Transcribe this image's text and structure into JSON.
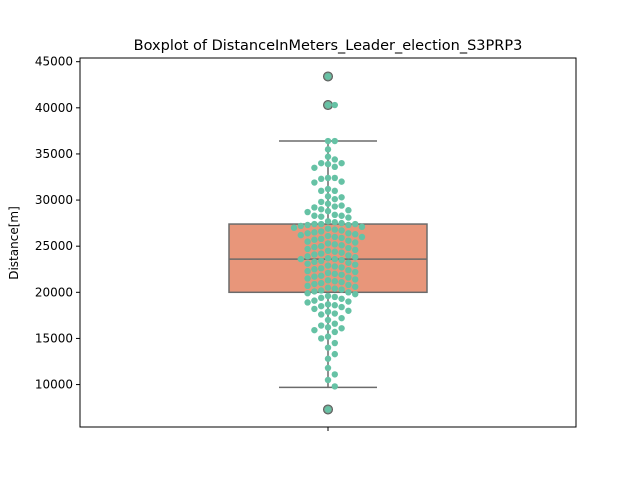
{
  "chart_data": {
    "type": "boxplot",
    "title": "Boxplot of DistanceInMeters_Leader_election_S3PRP3",
    "xlabel": "",
    "ylabel": "Distance[m]",
    "ylim": [
      5400,
      45400
    ],
    "yticks": [
      10000,
      15000,
      20000,
      25000,
      30000,
      35000,
      40000,
      45000
    ],
    "grid": false,
    "box": {
      "color": "#e8967a",
      "edge_color": "#6b6b6b",
      "whisker_low": 9700,
      "q1": 20000,
      "median": 23600,
      "q3": 27400,
      "whisker_high": 36400,
      "outliers": [
        7300,
        40300,
        43400
      ]
    },
    "swarm": {
      "color": "#66c2a5",
      "values": [
        43400,
        40300,
        40300,
        36400,
        36400,
        35500,
        34700,
        34400,
        34000,
        34000,
        33900,
        33600,
        33500,
        32400,
        32400,
        32300,
        32000,
        31900,
        31200,
        31000,
        31000,
        30400,
        30300,
        30100,
        29800,
        29600,
        29400,
        29300,
        29200,
        29000,
        28900,
        28800,
        28700,
        28400,
        28300,
        28300,
        28200,
        28100,
        27700,
        27600,
        27500,
        27400,
        27400,
        27400,
        27300,
        27300,
        27200,
        27100,
        27000,
        26900,
        26800,
        26700,
        26600,
        26500,
        26400,
        26400,
        26300,
        26200,
        26100,
        26000,
        26000,
        25900,
        25800,
        25700,
        25600,
        25500,
        25400,
        25300,
        25200,
        25100,
        25000,
        24900,
        24800,
        24700,
        24600,
        24500,
        24400,
        24300,
        24200,
        24100,
        24000,
        23900,
        23800,
        23700,
        23600,
        23600,
        23500,
        23400,
        23300,
        23200,
        23100,
        23000,
        22900,
        22800,
        22700,
        22600,
        22500,
        22400,
        22300,
        22200,
        22100,
        22000,
        21900,
        21800,
        21700,
        21600,
        21500,
        21400,
        21300,
        21200,
        21100,
        21000,
        20900,
        20800,
        20700,
        20600,
        20500,
        20400,
        20300,
        20200,
        20100,
        20000,
        19900,
        19800,
        19600,
        19500,
        19400,
        19300,
        19100,
        19000,
        18900,
        18700,
        18600,
        18500,
        18400,
        18200,
        18000,
        17900,
        17700,
        17600,
        17200,
        17000,
        16600,
        16400,
        16200,
        16100,
        15900,
        15700,
        15200,
        15000,
        14500,
        14000,
        13300,
        12800,
        11800,
        11100,
        10500,
        9800,
        7300
      ]
    }
  }
}
